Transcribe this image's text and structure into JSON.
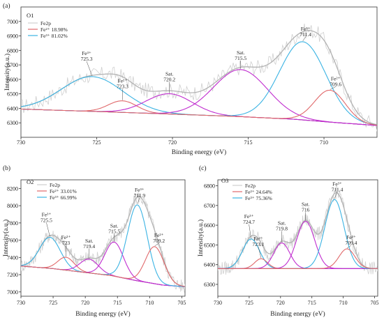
{
  "colors": {
    "fe2p": "#cfcfcf",
    "fe2": "#e0686a",
    "fe3": "#3ab3e3",
    "sat": "#c02ccf",
    "background": "#7a3cc4",
    "envelope": "#b3b3b3",
    "axis": "#333333"
  },
  "chart_data": [
    {
      "panel": "(a)",
      "sample": "O1",
      "type": "line",
      "xlabel": "Binding energy (eV)",
      "ylabel": "Intensity(a.u.)",
      "xlim": [
        730,
        706.5
      ],
      "ylim": [
        6200,
        7100
      ],
      "xticks": [
        730,
        725,
        720,
        715,
        710
      ],
      "yticks": [
        6300,
        6400,
        6500,
        6600,
        6700,
        6800,
        6900,
        7000
      ],
      "legend": {
        "title": "Fe2p",
        "fe2": "Fe²⁺ 18.98%",
        "fe3": "Fe³⁺ 81.02%"
      },
      "background": [
        [
          730,
          6395
        ],
        [
          725,
          6378
        ],
        [
          720,
          6360
        ],
        [
          716,
          6345
        ],
        [
          712,
          6325
        ],
        [
          709,
          6300
        ],
        [
          706.5,
          6282
        ]
      ],
      "peaks": [
        {
          "type": "fe3",
          "name": "Fe³⁺",
          "center": 725.3,
          "height": 240,
          "fwhm": 4.8
        },
        {
          "type": "fe2",
          "name": "Fe²⁺",
          "center": 723.3,
          "height": 80,
          "fwhm": 2.2
        },
        {
          "type": "sat",
          "name": "Sat.",
          "center": 720.2,
          "height": 140,
          "fwhm": 3.6
        },
        {
          "type": "sat",
          "name": "Sat.",
          "center": 715.5,
          "height": 325,
          "fwhm": 4.2
        },
        {
          "type": "fe3",
          "name": "Fe³⁺",
          "center": 711.4,
          "height": 540,
          "fwhm": 3.6
        },
        {
          "type": "fe2",
          "name": "Fe²⁺",
          "center": 709.6,
          "height": 220,
          "fwhm": 2.4
        }
      ]
    },
    {
      "panel": "(b)",
      "sample": "O2",
      "type": "line",
      "xlabel": "Binding energy (eV)",
      "ylabel": "Intensity(a.u.)",
      "xlim": [
        730,
        704.5
      ],
      "ylim": [
        6950,
        8300
      ],
      "xticks": [
        730,
        725,
        720,
        715,
        710,
        705
      ],
      "yticks": [
        7000,
        7200,
        7400,
        7600,
        7800,
        8000,
        8200
      ],
      "legend": {
        "title": "Fe2p",
        "fe2": "Fe²⁺ 33.01%",
        "fe3": "Fe³⁺ 66.99%"
      },
      "background": [
        [
          730,
          7300
        ],
        [
          725,
          7270
        ],
        [
          720,
          7225
        ],
        [
          716,
          7190
        ],
        [
          712,
          7130
        ],
        [
          708,
          7080
        ],
        [
          704.5,
          7060
        ]
      ],
      "peaks": [
        {
          "type": "fe3",
          "name": "Fe³⁺",
          "center": 725.5,
          "height": 360,
          "fwhm": 3.8
        },
        {
          "type": "fe2",
          "name": "Fe²⁺",
          "center": 723,
          "height": 150,
          "fwhm": 3.0
        },
        {
          "type": "sat",
          "name": "Sat.",
          "center": 719.4,
          "height": 160,
          "fwhm": 3.4
        },
        {
          "type": "sat",
          "name": "Sat.",
          "center": 715.5,
          "height": 395,
          "fwhm": 3.4
        },
        {
          "type": "fe3",
          "name": "Fe³⁺",
          "center": 711.9,
          "height": 880,
          "fwhm": 3.6
        },
        {
          "type": "fe2",
          "name": "Fe²⁺",
          "center": 709.2,
          "height": 430,
          "fwhm": 3.4
        }
      ]
    },
    {
      "panel": "(c)",
      "sample": "O3",
      "type": "line",
      "xlabel": "Binding energy (eV)",
      "ylabel": "Intensity(a.u.)",
      "xlim": [
        730,
        704.5
      ],
      "ylim": [
        6240,
        6830
      ],
      "xticks": [
        730,
        725,
        720,
        715,
        710,
        705
      ],
      "yticks": [
        6300,
        6400,
        6500,
        6600,
        6700,
        6800
      ],
      "legend": {
        "title": "Fe2p",
        "fe2": "Fe²⁺ 24.64%",
        "fe3": "Fe³⁺ 75.36%"
      },
      "background": [
        [
          730,
          6380
        ],
        [
          704.5,
          6380
        ]
      ],
      "peaks": [
        {
          "type": "fe3",
          "name": "Fe³⁺",
          "center": 724.7,
          "height": 150,
          "fwhm": 3.2
        },
        {
          "type": "fe2",
          "name": "Fe²⁺",
          "center": 723.1,
          "height": 50,
          "fwhm": 2.4
        },
        {
          "type": "sat",
          "name": "Sat.",
          "center": 719.8,
          "height": 130,
          "fwhm": 3.0
        },
        {
          "type": "sat",
          "name": "Sat.",
          "center": 716,
          "height": 240,
          "fwhm": 3.4
        },
        {
          "type": "fe3",
          "name": "Fe³⁺",
          "center": 711.4,
          "height": 350,
          "fwhm": 3.6
        },
        {
          "type": "fe2",
          "name": "Fe²⁺",
          "center": 709.4,
          "height": 100,
          "fwhm": 3.0
        }
      ]
    }
  ]
}
